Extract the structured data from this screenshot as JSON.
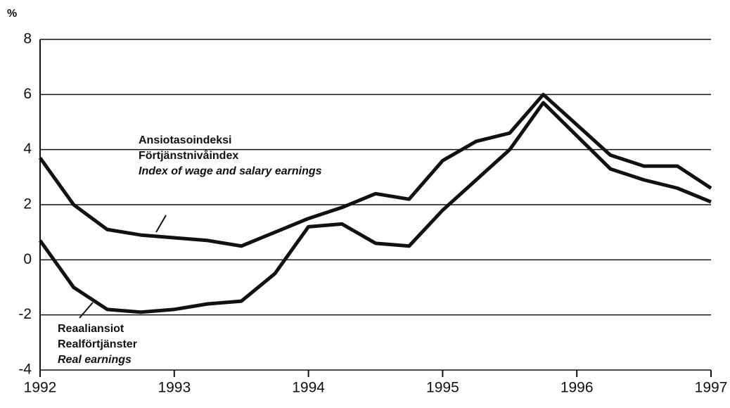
{
  "chart_data": {
    "type": "line",
    "y_label": "%",
    "x": [
      1992,
      1992.25,
      1992.5,
      1992.75,
      1993,
      1993.25,
      1993.5,
      1993.75,
      1994,
      1994.25,
      1994.5,
      1994.75,
      1995,
      1995.25,
      1995.5,
      1995.75,
      1996,
      1996.25,
      1996.5,
      1996.75,
      1997
    ],
    "series": [
      {
        "name": [
          "Ansiotasoindeksi",
          "Förtjänstnivåindex",
          "Index of wage and salary earnings"
        ],
        "color": "#111111",
        "values": [
          3.7,
          2.0,
          1.1,
          0.9,
          0.8,
          0.7,
          0.5,
          1.0,
          1.5,
          1.9,
          2.4,
          2.2,
          3.6,
          4.3,
          4.6,
          6.0,
          4.9,
          3.8,
          3.4,
          3.4,
          2.6
        ]
      },
      {
        "name": [
          "Reaaliansiot",
          "Realförtjänster",
          "Real earnings"
        ],
        "color": "#111111",
        "values": [
          0.7,
          -1.0,
          -1.8,
          -1.9,
          -1.8,
          -1.6,
          -1.5,
          -0.5,
          1.2,
          1.3,
          0.6,
          0.5,
          1.8,
          2.9,
          4.0,
          5.7,
          4.5,
          3.3,
          2.9,
          2.6,
          2.1
        ]
      }
    ],
    "xlim": [
      1992,
      1997
    ],
    "xticks": [
      1992,
      1993,
      1994,
      1995,
      1996,
      1997
    ],
    "ylim": [
      -4,
      8
    ],
    "yticks": [
      -4,
      -2,
      0,
      2,
      4,
      6,
      8
    ],
    "grid": true
  }
}
